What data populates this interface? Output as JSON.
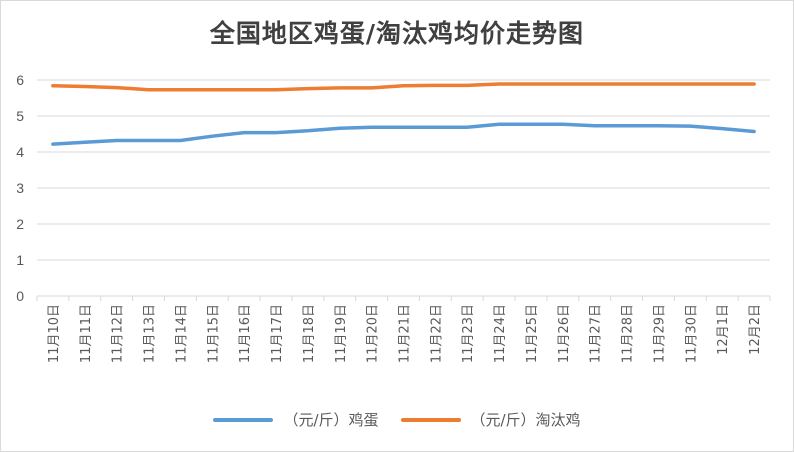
{
  "chart_data": {
    "type": "line",
    "title": "全国地区鸡蛋/淘汰鸡均价走势图",
    "categories": [
      "11月10日",
      "11月11日",
      "11月12日",
      "11月13日",
      "11月14日",
      "11月15日",
      "11月16日",
      "11月17日",
      "11月18日",
      "11月19日",
      "11月20日",
      "11月21日",
      "11月22日",
      "11月23日",
      "11月24日",
      "11月25日",
      "11月26日",
      "11月27日",
      "11月28日",
      "11月29日",
      "11月30日",
      "12月1日",
      "12月2日"
    ],
    "series": [
      {
        "name": "（元/斤）鸡蛋",
        "color": "#5b9bd5",
        "values": [
          4.22,
          4.27,
          4.32,
          4.32,
          4.32,
          4.44,
          4.54,
          4.54,
          4.59,
          4.66,
          4.69,
          4.69,
          4.69,
          4.69,
          4.77,
          4.77,
          4.77,
          4.73,
          4.73,
          4.73,
          4.72,
          4.65,
          4.57
        ]
      },
      {
        "name": "（元/斤）淘汰鸡",
        "color": "#ed7d31",
        "values": [
          5.84,
          5.82,
          5.79,
          5.73,
          5.73,
          5.73,
          5.73,
          5.73,
          5.76,
          5.78,
          5.78,
          5.84,
          5.85,
          5.85,
          5.89,
          5.89,
          5.89,
          5.89,
          5.89,
          5.89,
          5.89,
          5.89,
          5.89
        ]
      }
    ],
    "yticks": [
      "0",
      "1",
      "2",
      "3",
      "4",
      "5",
      "6"
    ],
    "ylim": [
      0,
      6
    ],
    "grid": true,
    "legend_position": "bottom"
  }
}
